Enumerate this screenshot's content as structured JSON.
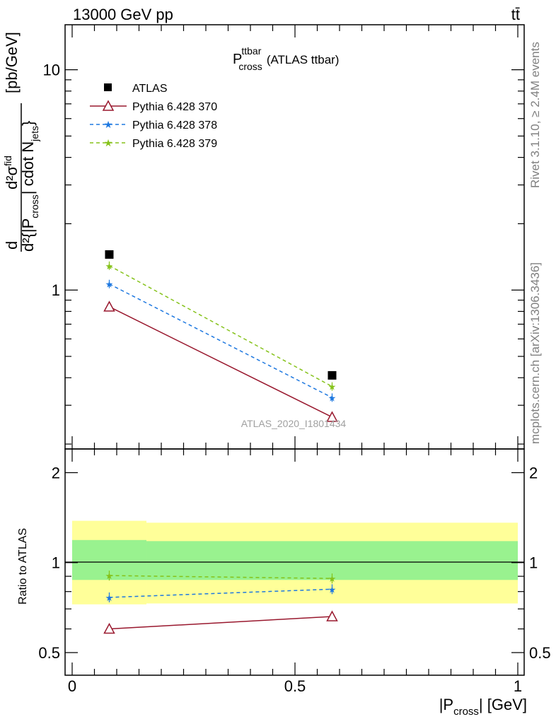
{
  "header": {
    "left": "13000 GeV pp",
    "right": "tt̄"
  },
  "side_labels": {
    "rivet": "Rivet 3.1.10, ≥ 2.4M events",
    "mcplots": "mcplots.cern.ch [arXiv:1306.3436]"
  },
  "plot_title": {
    "main": "P",
    "sup": "ttbar",
    "sub": "cross",
    "suffix": "(ATLAS ttbar)"
  },
  "watermark": "ATLAS_2020_I1801434",
  "ylabel_main": {
    "frac_top": "d²σ",
    "frac_top_sup": "fid",
    "frac_bottom": "d²{|P",
    "frac_bottom_sub": "cross",
    "frac_bottom_mid": "| cdot N",
    "frac_bottom_sub2": "jets",
    "frac_bottom_end": "}",
    "unit": "[pb/GeV]",
    "d_prefix": "d"
  },
  "ylabel_ratio": "Ratio to ATLAS",
  "xlabel": {
    "main": "|P",
    "sub": "cross",
    "end": "| [GeV]"
  },
  "colors": {
    "atlas": "#000000",
    "p370": "#99182e",
    "p378": "#1e78e0",
    "p379": "#85c21a",
    "band_inner": "#99f28f",
    "band_outer": "#ffff99"
  },
  "chart_data": [
    {
      "type": "line",
      "panel": "main",
      "yscale": "log",
      "xlim": [
        0,
        1
      ],
      "ylim": [
        0.19,
        16
      ],
      "yticklabels": [
        "1",
        "10"
      ],
      "legend_placement": "top-left",
      "series": [
        {
          "name": "ATLAS",
          "style": "square-marker",
          "x": [
            0.0833,
            0.5833
          ],
          "y": [
            1.45,
            0.41
          ]
        },
        {
          "name": "Pythia 6.428 370",
          "style": "solid-line-open-triangle",
          "x": [
            0.0833,
            0.5833
          ],
          "y": [
            0.84,
            0.265
          ]
        },
        {
          "name": "Pythia 6.428 378",
          "style": "dashed-line-star",
          "x": [
            0.0833,
            0.5833
          ],
          "y": [
            1.065,
            0.325
          ]
        },
        {
          "name": "Pythia 6.428 379",
          "style": "dashed-line-star",
          "x": [
            0.0833,
            0.5833
          ],
          "y": [
            1.29,
            0.365
          ]
        }
      ]
    },
    {
      "type": "line",
      "panel": "ratio",
      "yscale": "log",
      "xlim": [
        0,
        1
      ],
      "ylim": [
        0.42,
        2.4
      ],
      "xticklabels": [
        "0",
        "0.5",
        "1"
      ],
      "yticklabels": [
        "0.5",
        "1",
        "2"
      ],
      "bands": {
        "inner": [
          {
            "x": [
              0,
              0.1667
            ],
            "y": [
              0.875,
              1.19
            ]
          },
          {
            "x": [
              0.1667,
              1
            ],
            "y": [
              0.875,
              1.18
            ]
          }
        ],
        "outer": [
          {
            "x": [
              0,
              0.1667
            ],
            "y": [
              0.725,
              1.38
            ]
          },
          {
            "x": [
              0.1667,
              1
            ],
            "y": [
              0.73,
              1.36
            ]
          }
        ]
      },
      "series": [
        {
          "name": "Pythia 6.428 370",
          "x": [
            0.0833,
            0.5833
          ],
          "y": [
            0.6,
            0.66
          ]
        },
        {
          "name": "Pythia 6.428 378",
          "x": [
            0.0833,
            0.5833
          ],
          "y": [
            0.765,
            0.815
          ]
        },
        {
          "name": "Pythia 6.428 379",
          "x": [
            0.0833,
            0.5833
          ],
          "y": [
            0.905,
            0.885
          ]
        }
      ]
    }
  ]
}
